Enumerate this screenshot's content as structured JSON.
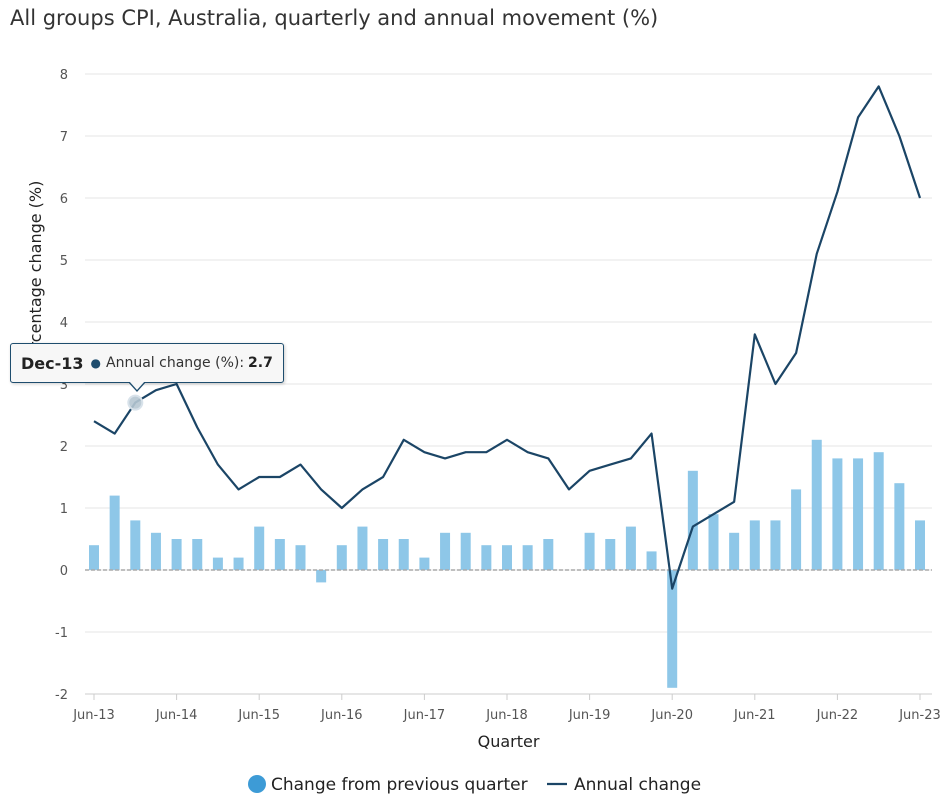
{
  "chart_data": {
    "type": "bar",
    "title": "All groups CPI, Australia, quarterly and annual movement (%)",
    "xlabel": "Quarter",
    "ylabel": "Percentage change (%)",
    "ylim": [
      -2,
      8
    ],
    "yticks": [
      8,
      7,
      6,
      5,
      4,
      3,
      2,
      1,
      0,
      -1,
      -2
    ],
    "grid": true,
    "legend_position": "bottom",
    "categories": [
      "Jun-13",
      "Sep-13",
      "Dec-13",
      "Mar-14",
      "Jun-14",
      "Sep-14",
      "Dec-14",
      "Mar-15",
      "Jun-15",
      "Sep-15",
      "Dec-15",
      "Mar-16",
      "Jun-16",
      "Sep-16",
      "Dec-16",
      "Mar-17",
      "Jun-17",
      "Sep-17",
      "Dec-17",
      "Mar-18",
      "Jun-18",
      "Sep-18",
      "Dec-18",
      "Mar-19",
      "Jun-19",
      "Sep-19",
      "Dec-19",
      "Mar-20",
      "Jun-20",
      "Sep-20",
      "Dec-20",
      "Mar-21",
      "Jun-21",
      "Sep-21",
      "Dec-21",
      "Mar-22",
      "Jun-22",
      "Sep-22",
      "Dec-22",
      "Mar-23",
      "Jun-23"
    ],
    "xtick_labels": [
      "Jun-13",
      "Jun-14",
      "Jun-15",
      "Jun-16",
      "Jun-17",
      "Jun-18",
      "Jun-19",
      "Jun-20",
      "Jun-21",
      "Jun-22",
      "Jun-23"
    ],
    "series": [
      {
        "name": "Change from previous quarter",
        "type": "bar",
        "color": "#8ec7e8",
        "values": [
          0.4,
          1.2,
          0.8,
          0.6,
          0.5,
          0.5,
          0.2,
          0.2,
          0.7,
          0.5,
          0.4,
          -0.2,
          0.4,
          0.7,
          0.5,
          0.5,
          0.2,
          0.6,
          0.6,
          0.4,
          0.4,
          0.4,
          0.5,
          0.0,
          0.6,
          0.5,
          0.7,
          0.3,
          -1.9,
          1.6,
          0.9,
          0.6,
          0.8,
          0.8,
          1.3,
          2.1,
          1.8,
          1.8,
          1.9,
          1.4,
          0.8
        ]
      },
      {
        "name": "Annual change",
        "type": "line",
        "color": "#1b4566",
        "values": [
          2.4,
          2.2,
          2.7,
          2.9,
          3.0,
          2.3,
          1.7,
          1.3,
          1.5,
          1.5,
          1.7,
          1.3,
          1.0,
          1.3,
          1.5,
          2.1,
          1.9,
          1.8,
          1.9,
          1.9,
          2.1,
          1.9,
          1.8,
          1.3,
          1.6,
          1.7,
          1.8,
          2.2,
          -0.3,
          0.7,
          0.9,
          1.1,
          3.8,
          3.0,
          3.5,
          5.1,
          6.1,
          7.3,
          7.8,
          7.0,
          6.0
        ]
      }
    ],
    "legend": {
      "quarterly_label": "Change from previous quarter",
      "annual_label": "Annual change",
      "marker_color": "#3d9bd6"
    },
    "tooltip": {
      "date": "Dec-13",
      "label": "Annual change (%):",
      "value": "2.7",
      "index": 2
    }
  }
}
